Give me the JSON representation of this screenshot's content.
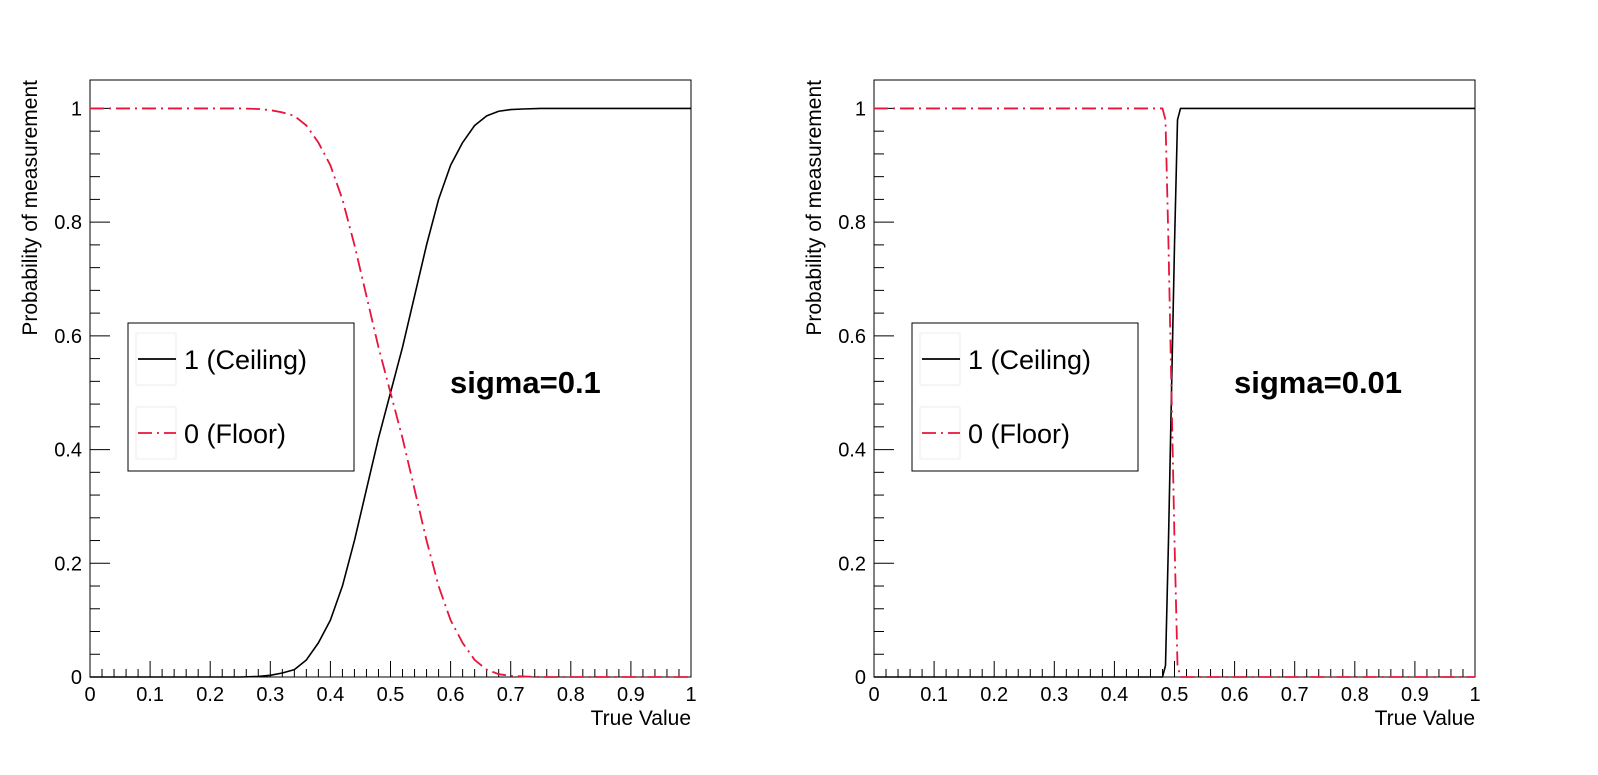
{
  "chart_data": [
    {
      "type": "line",
      "title": "",
      "xlabel": "True Value",
      "ylabel": "Probability of measurement",
      "xlim": [
        0,
        1
      ],
      "ylim": [
        0,
        1.05
      ],
      "xticks": [
        "0",
        "0.1",
        "0.2",
        "0.3",
        "0.4",
        "0.5",
        "0.6",
        "0.7",
        "0.8",
        "0.9",
        "1"
      ],
      "yticks": [
        "0",
        "0.2",
        "0.4",
        "0.6",
        "0.8",
        "1"
      ],
      "legend_position": "middle-left",
      "annotation": "sigma=0.1",
      "grid": false,
      "x": [
        0,
        0.05,
        0.1,
        0.15,
        0.2,
        0.25,
        0.28,
        0.3,
        0.32,
        0.34,
        0.36,
        0.38,
        0.4,
        0.42,
        0.44,
        0.46,
        0.48,
        0.5,
        0.52,
        0.54,
        0.56,
        0.58,
        0.6,
        0.62,
        0.64,
        0.66,
        0.68,
        0.7,
        0.72,
        0.75,
        0.8,
        0.85,
        0.9,
        0.95,
        1
      ],
      "series": [
        {
          "name": "1 (Ceiling)",
          "color": "#000000",
          "style": "solid",
          "values": [
            0,
            0,
            0,
            0,
            0,
            0,
            0.001,
            0.003,
            0.007,
            0.013,
            0.03,
            0.06,
            0.1,
            0.16,
            0.24,
            0.33,
            0.42,
            0.5,
            0.58,
            0.67,
            0.76,
            0.84,
            0.9,
            0.94,
            0.97,
            0.987,
            0.995,
            0.998,
            0.999,
            1,
            1,
            1,
            1,
            1,
            1
          ]
        },
        {
          "name": "0 (Floor)",
          "color": "#e8143c",
          "style": "dash-dot",
          "values": [
            1,
            1,
            1,
            1,
            1,
            1,
            0.999,
            0.997,
            0.993,
            0.987,
            0.97,
            0.94,
            0.9,
            0.84,
            0.76,
            0.67,
            0.58,
            0.5,
            0.42,
            0.33,
            0.24,
            0.16,
            0.1,
            0.06,
            0.03,
            0.013,
            0.005,
            0.002,
            0.001,
            0,
            0,
            0,
            0,
            0,
            0
          ]
        }
      ]
    },
    {
      "type": "line",
      "title": "",
      "xlabel": "True Value",
      "ylabel": "Probability of measurement",
      "xlim": [
        0,
        1
      ],
      "ylim": [
        0,
        1.05
      ],
      "xticks": [
        "0",
        "0.1",
        "0.2",
        "0.3",
        "0.4",
        "0.5",
        "0.6",
        "0.7",
        "0.8",
        "0.9",
        "1"
      ],
      "yticks": [
        "0",
        "0.2",
        "0.4",
        "0.6",
        "0.8",
        "1"
      ],
      "legend_position": "middle-left",
      "annotation": "sigma=0.01",
      "grid": false,
      "x": [
        0,
        0.1,
        0.2,
        0.3,
        0.4,
        0.45,
        0.48,
        0.485,
        0.49,
        0.495,
        0.5,
        0.505,
        0.51,
        0.515,
        0.52,
        0.53,
        0.6,
        0.7,
        0.8,
        0.9,
        1
      ],
      "series": [
        {
          "name": "1 (Ceiling)",
          "color": "#000000",
          "style": "solid",
          "values": [
            0,
            0,
            0,
            0,
            0,
            0,
            0,
            0.02,
            0.24,
            0.5,
            0.76,
            0.98,
            1,
            1,
            1,
            1,
            1,
            1,
            1,
            1,
            1
          ]
        },
        {
          "name": "0 (Floor)",
          "color": "#e8143c",
          "style": "dash-dot",
          "values": [
            1,
            1,
            1,
            1,
            1,
            1,
            1,
            0.98,
            0.76,
            0.5,
            0.24,
            0.02,
            0,
            0,
            0,
            0,
            0,
            0,
            0,
            0,
            0
          ]
        }
      ]
    }
  ]
}
